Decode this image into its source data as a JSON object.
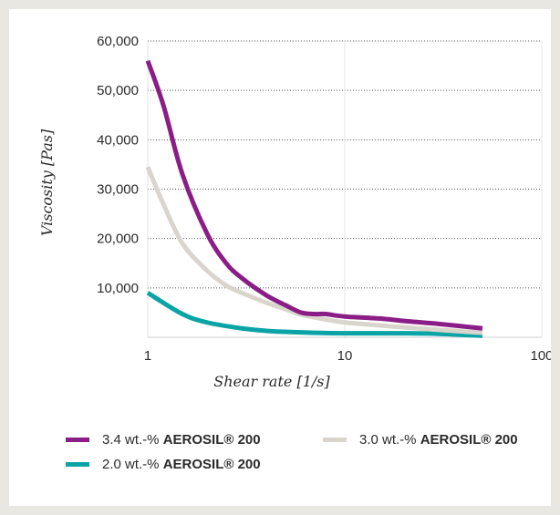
{
  "chart_data": {
    "type": "line",
    "xlabel": "Shear rate [1/s]",
    "ylabel": "Viscosity [Pas]",
    "x_scale": "log",
    "xlim": [
      1,
      100
    ],
    "ylim": [
      0,
      60000
    ],
    "x_ticks": [
      1,
      10,
      100
    ],
    "x_tick_labels": [
      "1",
      "10",
      "100"
    ],
    "y_ticks": [
      10000,
      20000,
      30000,
      40000,
      50000,
      60000
    ],
    "y_tick_labels": [
      "10,000",
      "20,000",
      "30,000",
      "40,000",
      "50,000",
      "60,000"
    ],
    "grid": true,
    "legend_position": "bottom",
    "series": [
      {
        "name": "3.4 wt.-% AEROSIL® 200",
        "name_prefix": "3.4 wt.-% ",
        "name_bold": "AEROSIL® 200",
        "color": "#8a1e86",
        "x": [
          1,
          1.2,
          1.5,
          2,
          2.5,
          3,
          4,
          5,
          6,
          7,
          8,
          10,
          15,
          20,
          30,
          50
        ],
        "y": [
          56000,
          47000,
          33000,
          21000,
          15000,
          12000,
          8500,
          6500,
          5000,
          4700,
          4700,
          4200,
          3800,
          3300,
          2700,
          1800
        ]
      },
      {
        "name": "3.0 wt.-% AEROSIL® 200",
        "name_prefix": "3.0 wt.-% ",
        "name_bold": "AEROSIL® 200",
        "color": "#d9d5cc",
        "x": [
          1,
          1.2,
          1.5,
          2,
          2.5,
          3,
          4,
          5,
          6,
          8,
          10,
          15,
          20,
          30,
          50
        ],
        "y": [
          34500,
          27000,
          19000,
          13500,
          10500,
          9000,
          7000,
          5700,
          4600,
          3600,
          3000,
          2400,
          2000,
          1500,
          900
        ]
      },
      {
        "name": "2.0 wt.-% AEROSIL® 200",
        "name_prefix": "2.0 wt.-% ",
        "name_bold": "AEROSIL® 200",
        "color": "#0aa3a6",
        "x": [
          1,
          1.5,
          2,
          3,
          4,
          5,
          7,
          10,
          20,
          30,
          50
        ],
        "y": [
          9000,
          4700,
          3000,
          1800,
          1300,
          1100,
          900,
          800,
          800,
          700,
          300
        ]
      }
    ]
  }
}
